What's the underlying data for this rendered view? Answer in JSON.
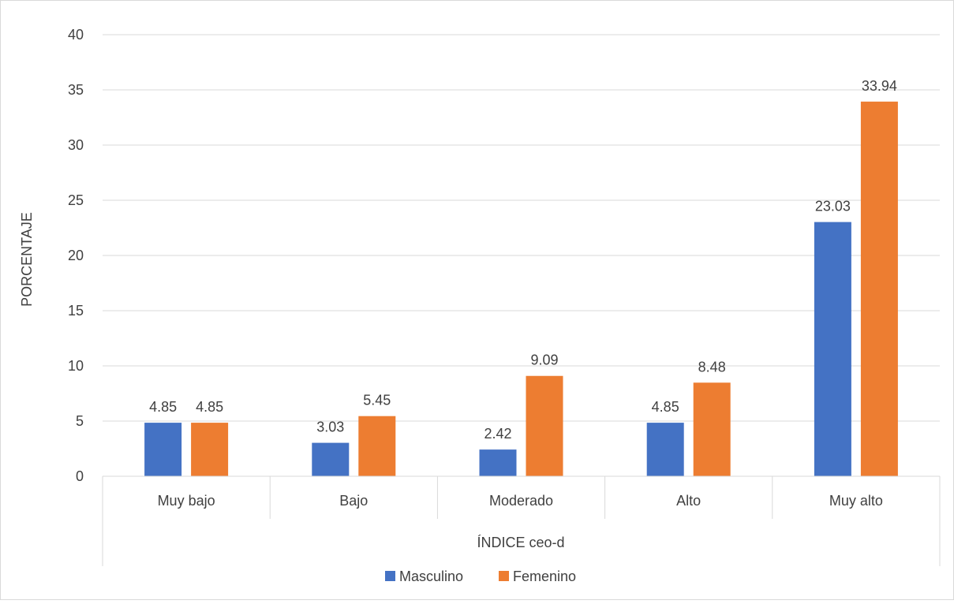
{
  "chart_data": {
    "type": "bar",
    "categories": [
      "Muy bajo",
      "Bajo",
      "Moderado",
      "Alto",
      "Muy alto"
    ],
    "series": [
      {
        "name": "Masculino",
        "values": [
          4.85,
          3.03,
          2.42,
          4.85,
          23.03
        ],
        "color": "#4472C4"
      },
      {
        "name": "Femenino",
        "values": [
          4.85,
          5.45,
          9.09,
          8.48,
          33.94
        ],
        "color": "#ED7D31"
      }
    ],
    "data_labels": [
      [
        "4.85",
        "3.03",
        "2.42",
        "4.85",
        "23.03"
      ],
      [
        "4.85",
        "5.45",
        "9.09",
        "8.48",
        "33.94"
      ]
    ],
    "title": "",
    "xlabel": "ÍNDICE ceo-d",
    "ylabel": "PORCENTAJE",
    "ylim": [
      0,
      40
    ],
    "yticks": [
      "0",
      "5",
      "10",
      "15",
      "20",
      "25",
      "30",
      "35",
      "40"
    ],
    "grid": true,
    "legend_position": "bottom"
  }
}
